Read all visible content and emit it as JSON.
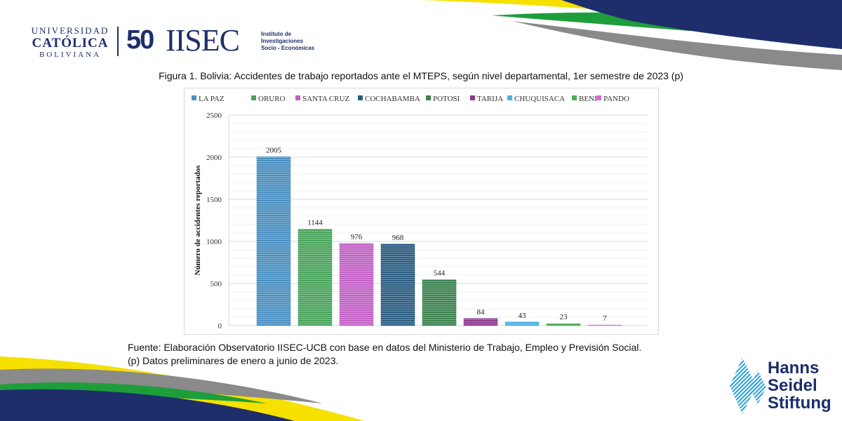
{
  "logos": {
    "ucb": {
      "line1": "UNIVERSIDAD",
      "line2": "CATÓLICA",
      "line3": "BOLIVIANA"
    },
    "iisec": {
      "fifty": "50",
      "name": "IISEC",
      "inst_line1": "Instituto de",
      "inst_line2": "Investigaciones",
      "inst_line3": "Socio - Económicas"
    },
    "hss": {
      "line1": "Hanns",
      "line2": "Seidel",
      "line3": "Stiftung"
    }
  },
  "figure_title": "Figura 1. Bolivia: Accidentes de trabajo reportados ante el MTEPS, según nivel departamental, 1er semestre de 2023 (p)",
  "source_line1": "Fuente: Elaboración Observatorio IISEC-UCB con base en datos del Ministerio de Trabajo, Empleo y Previsión Social.",
  "source_line2": "(p) Datos preliminares de enero a junio de 2023.",
  "colors": {
    "navy": "#1d2e6b",
    "yellow": "#f6e000",
    "green": "#1e9e3a",
    "gray": "#8a8a8a"
  },
  "chart_data": {
    "type": "bar",
    "title": "",
    "xlabel": "",
    "ylabel": "Número de accidentes reportados",
    "ylim": [
      0,
      2500
    ],
    "yticks": [
      0,
      500,
      1000,
      1500,
      2000,
      2500
    ],
    "grid": true,
    "legend_position": "top",
    "categories": [
      "LA PAZ",
      "ORURO",
      "SANTA CRUZ",
      "COCHABAMBA",
      "POTOSI",
      "TARIJA",
      "CHUQUISACA",
      "BENI",
      "PANDO"
    ],
    "values": [
      2005,
      1144,
      976,
      968,
      544,
      84,
      43,
      23,
      7
    ],
    "bar_colors": [
      "#4a8fc0",
      "#4aa35c",
      "#c162c6",
      "#2b5c80",
      "#3d8250",
      "#8a3a8a",
      "#4fb0df",
      "#4cae57",
      "#d86ad6"
    ]
  }
}
